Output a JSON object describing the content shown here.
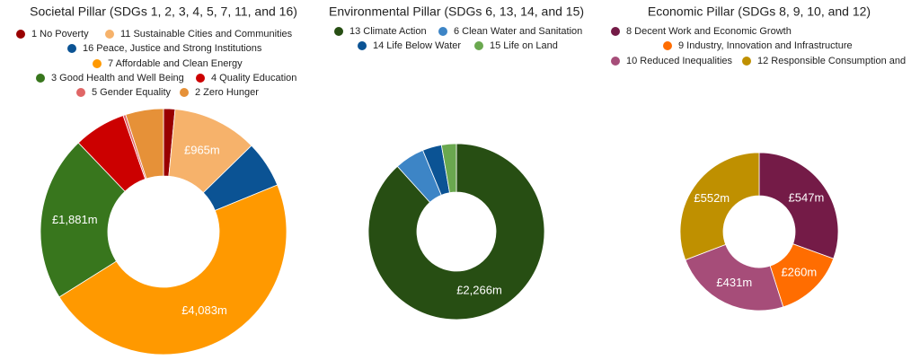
{
  "chart_data": [
    {
      "type": "donut",
      "title": "Societal Pillar (SDGs 1, 2, 3, 4, 5, 7, 11, and 16)",
      "categories": [
        "1 No Poverty",
        "11 Sustainable Cities and Communities",
        "16 Peace, Justice and Strong Institutions",
        "7 Affordable and Clean Energy",
        "3 Good Health and Well Being",
        "4 Quality Education",
        "5 Gender Equality",
        "2 Zero Hunger"
      ],
      "values": [
        130,
        965,
        530,
        4083,
        1881,
        590,
        30,
        430
      ],
      "value_labels": [
        null,
        "£965m",
        null,
        "£4,083m",
        "£1,881m",
        null,
        null,
        null
      ],
      "colors": [
        "#990000",
        "#f6b26b",
        "#0b5394",
        "#ff9900",
        "#38761d",
        "#cc0000",
        "#e06666",
        "#e69138"
      ]
    },
    {
      "type": "donut",
      "title": "Environmental Pillar (SDGs 6, 13, 14, and 15)",
      "categories": [
        "13 Climate Action",
        "6 Clean Water and Sanitation",
        "14 Life Below Water",
        "15 Life on Land"
      ],
      "values": [
        2266,
        140,
        90,
        70
      ],
      "value_labels": [
        "£2,266m",
        null,
        null,
        null
      ],
      "colors": [
        "#274e13",
        "#3d85c6",
        "#0b5394",
        "#6aa84f"
      ]
    },
    {
      "type": "donut",
      "title": "Economic Pillar (SDGs 8, 9, 10, and 12)",
      "categories": [
        "8 Decent Work and Economic Growth",
        "9 Industry, Innovation and Infrastructure",
        "10 Reduced Inequalities",
        "12 Responsible Consumption and"
      ],
      "values": [
        547,
        260,
        431,
        552
      ],
      "value_labels": [
        "£547m",
        "£260m",
        "£431m",
        "£552m"
      ],
      "colors": [
        "#741b47",
        "#ff6d01",
        "#a64d79",
        "#bf9000"
      ]
    }
  ]
}
